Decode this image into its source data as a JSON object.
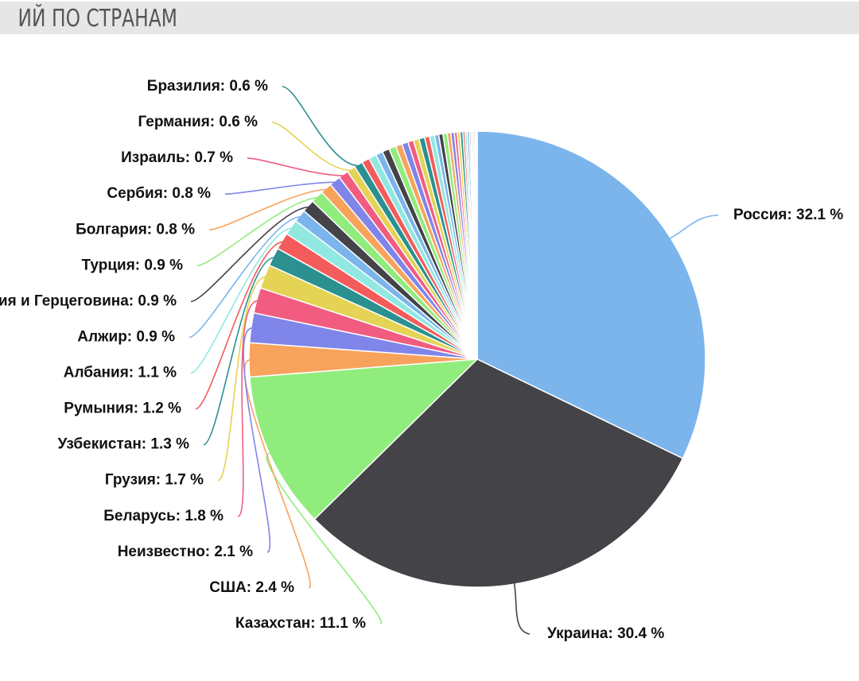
{
  "header": {
    "title": "ИЙ ПО СТРАНАМ"
  },
  "chart_data": {
    "type": "pie",
    "title": "",
    "value_suffix": " %",
    "slices": [
      {
        "name": "Россия",
        "value": 32.1,
        "color": "#7cb5ec"
      },
      {
        "name": "Украина",
        "value": 30.4,
        "color": "#434348"
      },
      {
        "name": "Казахстан",
        "value": 11.1,
        "color": "#90ed7d"
      },
      {
        "name": "США",
        "value": 2.4,
        "color": "#f7a35c"
      },
      {
        "name": "Неизвестно",
        "value": 2.1,
        "color": "#8085e9"
      },
      {
        "name": "Беларусь",
        "value": 1.8,
        "color": "#f15c80"
      },
      {
        "name": "Грузия",
        "value": 1.7,
        "color": "#e4d354"
      },
      {
        "name": "Узбекистан",
        "value": 1.3,
        "color": "#2b908f"
      },
      {
        "name": "Румыния",
        "value": 1.2,
        "color": "#f45b5b"
      },
      {
        "name": "Албания",
        "value": 1.1,
        "color": "#91e8e1"
      },
      {
        "name": "Алжир",
        "value": 0.9,
        "color": "#7cb5ec"
      },
      {
        "name": "Босния и Герцеговина",
        "value": 0.9,
        "color": "#434348"
      },
      {
        "name": "Турция",
        "value": 0.9,
        "color": "#90ed7d"
      },
      {
        "name": "Болгария",
        "value": 0.8,
        "color": "#f7a35c"
      },
      {
        "name": "Сербия",
        "value": 0.8,
        "color": "#8085e9"
      },
      {
        "name": "Израиль",
        "value": 0.7,
        "color": "#f15c80"
      },
      {
        "name": "Германия",
        "value": 0.6,
        "color": "#e4d354"
      },
      {
        "name": "Бразилия",
        "value": 0.6,
        "color": "#2b908f"
      }
    ],
    "unlabeled_slices": [
      {
        "value": 0.55,
        "color": "#f45b5b"
      },
      {
        "value": 0.55,
        "color": "#91e8e1"
      },
      {
        "value": 0.5,
        "color": "#7cb5ec"
      },
      {
        "value": 0.5,
        "color": "#434348"
      },
      {
        "value": 0.5,
        "color": "#90ed7d"
      },
      {
        "value": 0.45,
        "color": "#f7a35c"
      },
      {
        "value": 0.45,
        "color": "#8085e9"
      },
      {
        "value": 0.4,
        "color": "#f15c80"
      },
      {
        "value": 0.4,
        "color": "#e4d354"
      },
      {
        "value": 0.4,
        "color": "#2b908f"
      },
      {
        "value": 0.35,
        "color": "#f45b5b"
      },
      {
        "value": 0.35,
        "color": "#91e8e1"
      },
      {
        "value": 0.3,
        "color": "#7cb5ec"
      },
      {
        "value": 0.3,
        "color": "#434348"
      },
      {
        "value": 0.3,
        "color": "#90ed7d"
      },
      {
        "value": 0.25,
        "color": "#f7a35c"
      },
      {
        "value": 0.25,
        "color": "#8085e9"
      },
      {
        "value": 0.2,
        "color": "#f15c80"
      },
      {
        "value": 0.2,
        "color": "#e4d354"
      },
      {
        "value": 0.2,
        "color": "#2b908f"
      },
      {
        "value": 0.15,
        "color": "#f45b5b"
      },
      {
        "value": 0.15,
        "color": "#91e8e1"
      },
      {
        "value": 0.15,
        "color": "#7cb5ec"
      },
      {
        "value": 0.1,
        "color": "#434348"
      },
      {
        "value": 0.1,
        "color": "#90ed7d"
      },
      {
        "value": 0.1,
        "color": "#f7a35c"
      },
      {
        "value": 0.1,
        "color": "#8085e9"
      },
      {
        "value": 0.05,
        "color": "#f15c80"
      },
      {
        "value": 0.05,
        "color": "#e4d354"
      },
      {
        "value": 0.05,
        "color": "#2b908f"
      }
    ]
  }
}
